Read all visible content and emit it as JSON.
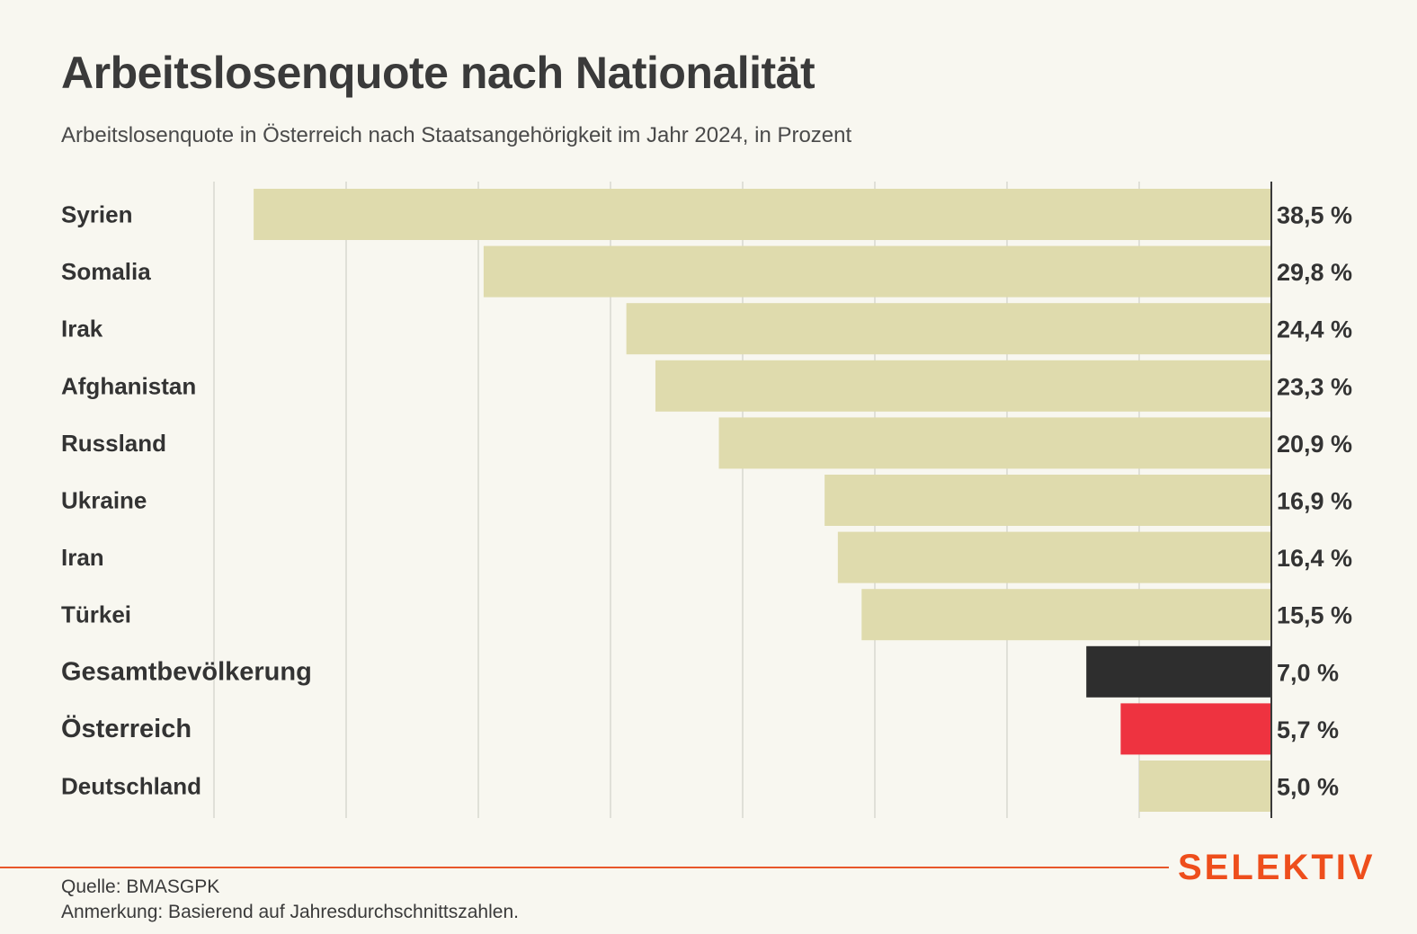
{
  "header": {
    "title": "Arbeitslosenquote nach Nationalität",
    "subtitle": "Arbeitslosenquote in Österreich nach Staatsangehörigkeit im Jahr 2024, in Prozent"
  },
  "footer": {
    "source": "Quelle: BMASGPK",
    "note": "Anmerkung: Basierend auf Jahresdurchschnittszahlen.",
    "logo": "SELEKTIV"
  },
  "colors": {
    "background": "#f8f7f0",
    "bar_default": "#dfdbad",
    "bar_total": "#2e2e2e",
    "bar_austria": "#ee3340",
    "gridline": "#c8c8c0",
    "baseline": "#3a3a3a",
    "accent": "#ee4e1c"
  },
  "chart_data": {
    "type": "bar",
    "orientation": "horizontal",
    "direction": "right-to-left",
    "categories": [
      "Syrien",
      "Somalia",
      "Irak",
      "Afghanistan",
      "Russland",
      "Ukraine",
      "Iran",
      "Türkei",
      "Gesamtbevölkerung",
      "Österreich",
      "Deutschland"
    ],
    "values": [
      38.5,
      29.8,
      24.4,
      23.3,
      20.9,
      16.9,
      16.4,
      15.5,
      7.0,
      5.7,
      5.0
    ],
    "value_labels": [
      "38,5 %",
      "29,8 %",
      "24,4 %",
      "23,3 %",
      "20,9 %",
      "16,9 %",
      "16,4 %",
      "15,5 %",
      "7,0 %",
      "5,7 %",
      "5,0 %"
    ],
    "highlight": {
      "Gesamtbevölkerung": "#2e2e2e",
      "Österreich": "#ee3340"
    },
    "bold_labels": [
      "Gesamtbevölkerung",
      "Österreich"
    ],
    "xlim": [
      0,
      40
    ],
    "gridlines": [
      5,
      10,
      15,
      20,
      25,
      30,
      35,
      40
    ],
    "grid": true,
    "legend": false
  }
}
